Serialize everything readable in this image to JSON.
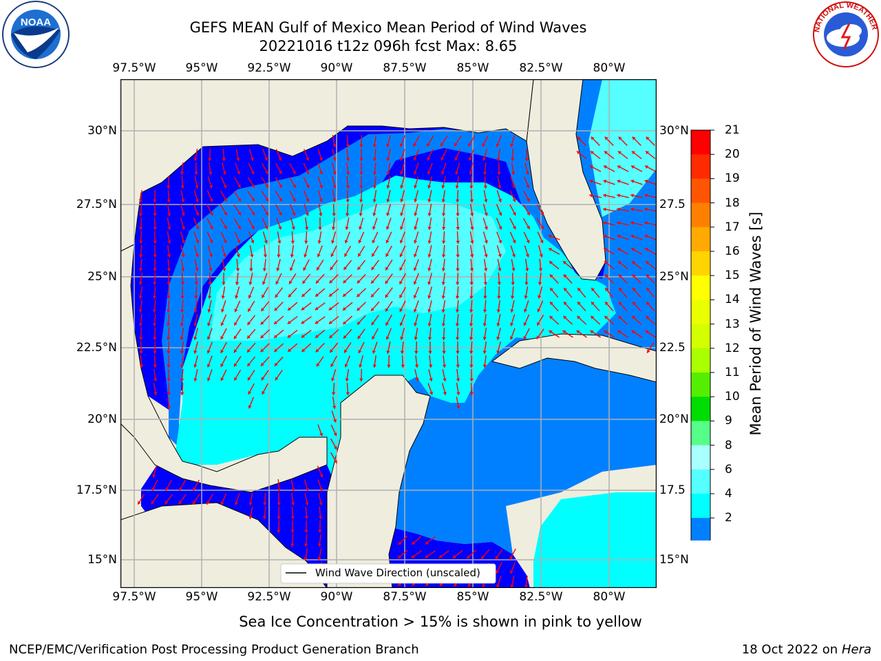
{
  "title_line1": "GEFS MEAN Gulf of Mexico Mean Period of Wind Waves",
  "title_line2": "20221016 t12z 096h fcst   Max: 8.65",
  "lon_labels": [
    "97.5°W",
    "95°W",
    "92.5°W",
    "90°W",
    "87.5°W",
    "85°W",
    "82.5°W",
    "80°W"
  ],
  "lat_labels": [
    "30°N",
    "27.5°N",
    "25°N",
    "22.5°N",
    "20°N",
    "17.5°N",
    "15°N"
  ],
  "lat_labels_right": [
    "30°N",
    "27.5",
    "25°N",
    "22.5",
    "20°N",
    "17.5",
    "15°N"
  ],
  "colorbar": {
    "ticks": [
      "21",
      "20",
      "19",
      "18",
      "17",
      "16",
      "15",
      "14",
      "13",
      "12",
      "11",
      "10",
      "9",
      "8",
      "6",
      "4",
      "2"
    ],
    "label": "Mean Period of Wind Waves [s]",
    "colors": [
      "#ff0000",
      "#ff2a00",
      "#ff5500",
      "#ff8000",
      "#ffaa00",
      "#ffd400",
      "#ffff00",
      "#eaff00",
      "#d4ff00",
      "#aaff00",
      "#55ee00",
      "#00dd00",
      "#55ff88",
      "#aaffff",
      "#55ffff",
      "#00ffff",
      "#0080ff",
      "#0000ff"
    ]
  },
  "legend": {
    "label": "Wind Wave Direction (unscaled)"
  },
  "note": "Sea Ice Concentration > 15% is shown in pink to yellow",
  "footer_left": "NCEP/EMC/Verification Post Processing Product Generation Branch",
  "footer_right_prefix": "18 Oct 2022 on ",
  "footer_right_host": "Hera",
  "logos": {
    "noaa": {
      "text": "NOAA",
      "icon": "noaa-logo-icon"
    },
    "nws": {
      "text": "NATIONAL WEATHER SERVICE",
      "icon": "nws-logo-icon"
    }
  },
  "map_colors": {
    "land": "#efedde",
    "ocean_low": "#0080ff",
    "ocean_lowest": "#0000ff",
    "ocean_mid": "#00ffff",
    "ocean_high": "#55ffff",
    "arrow": "#ff0000",
    "grid": "#b0b0b0"
  }
}
